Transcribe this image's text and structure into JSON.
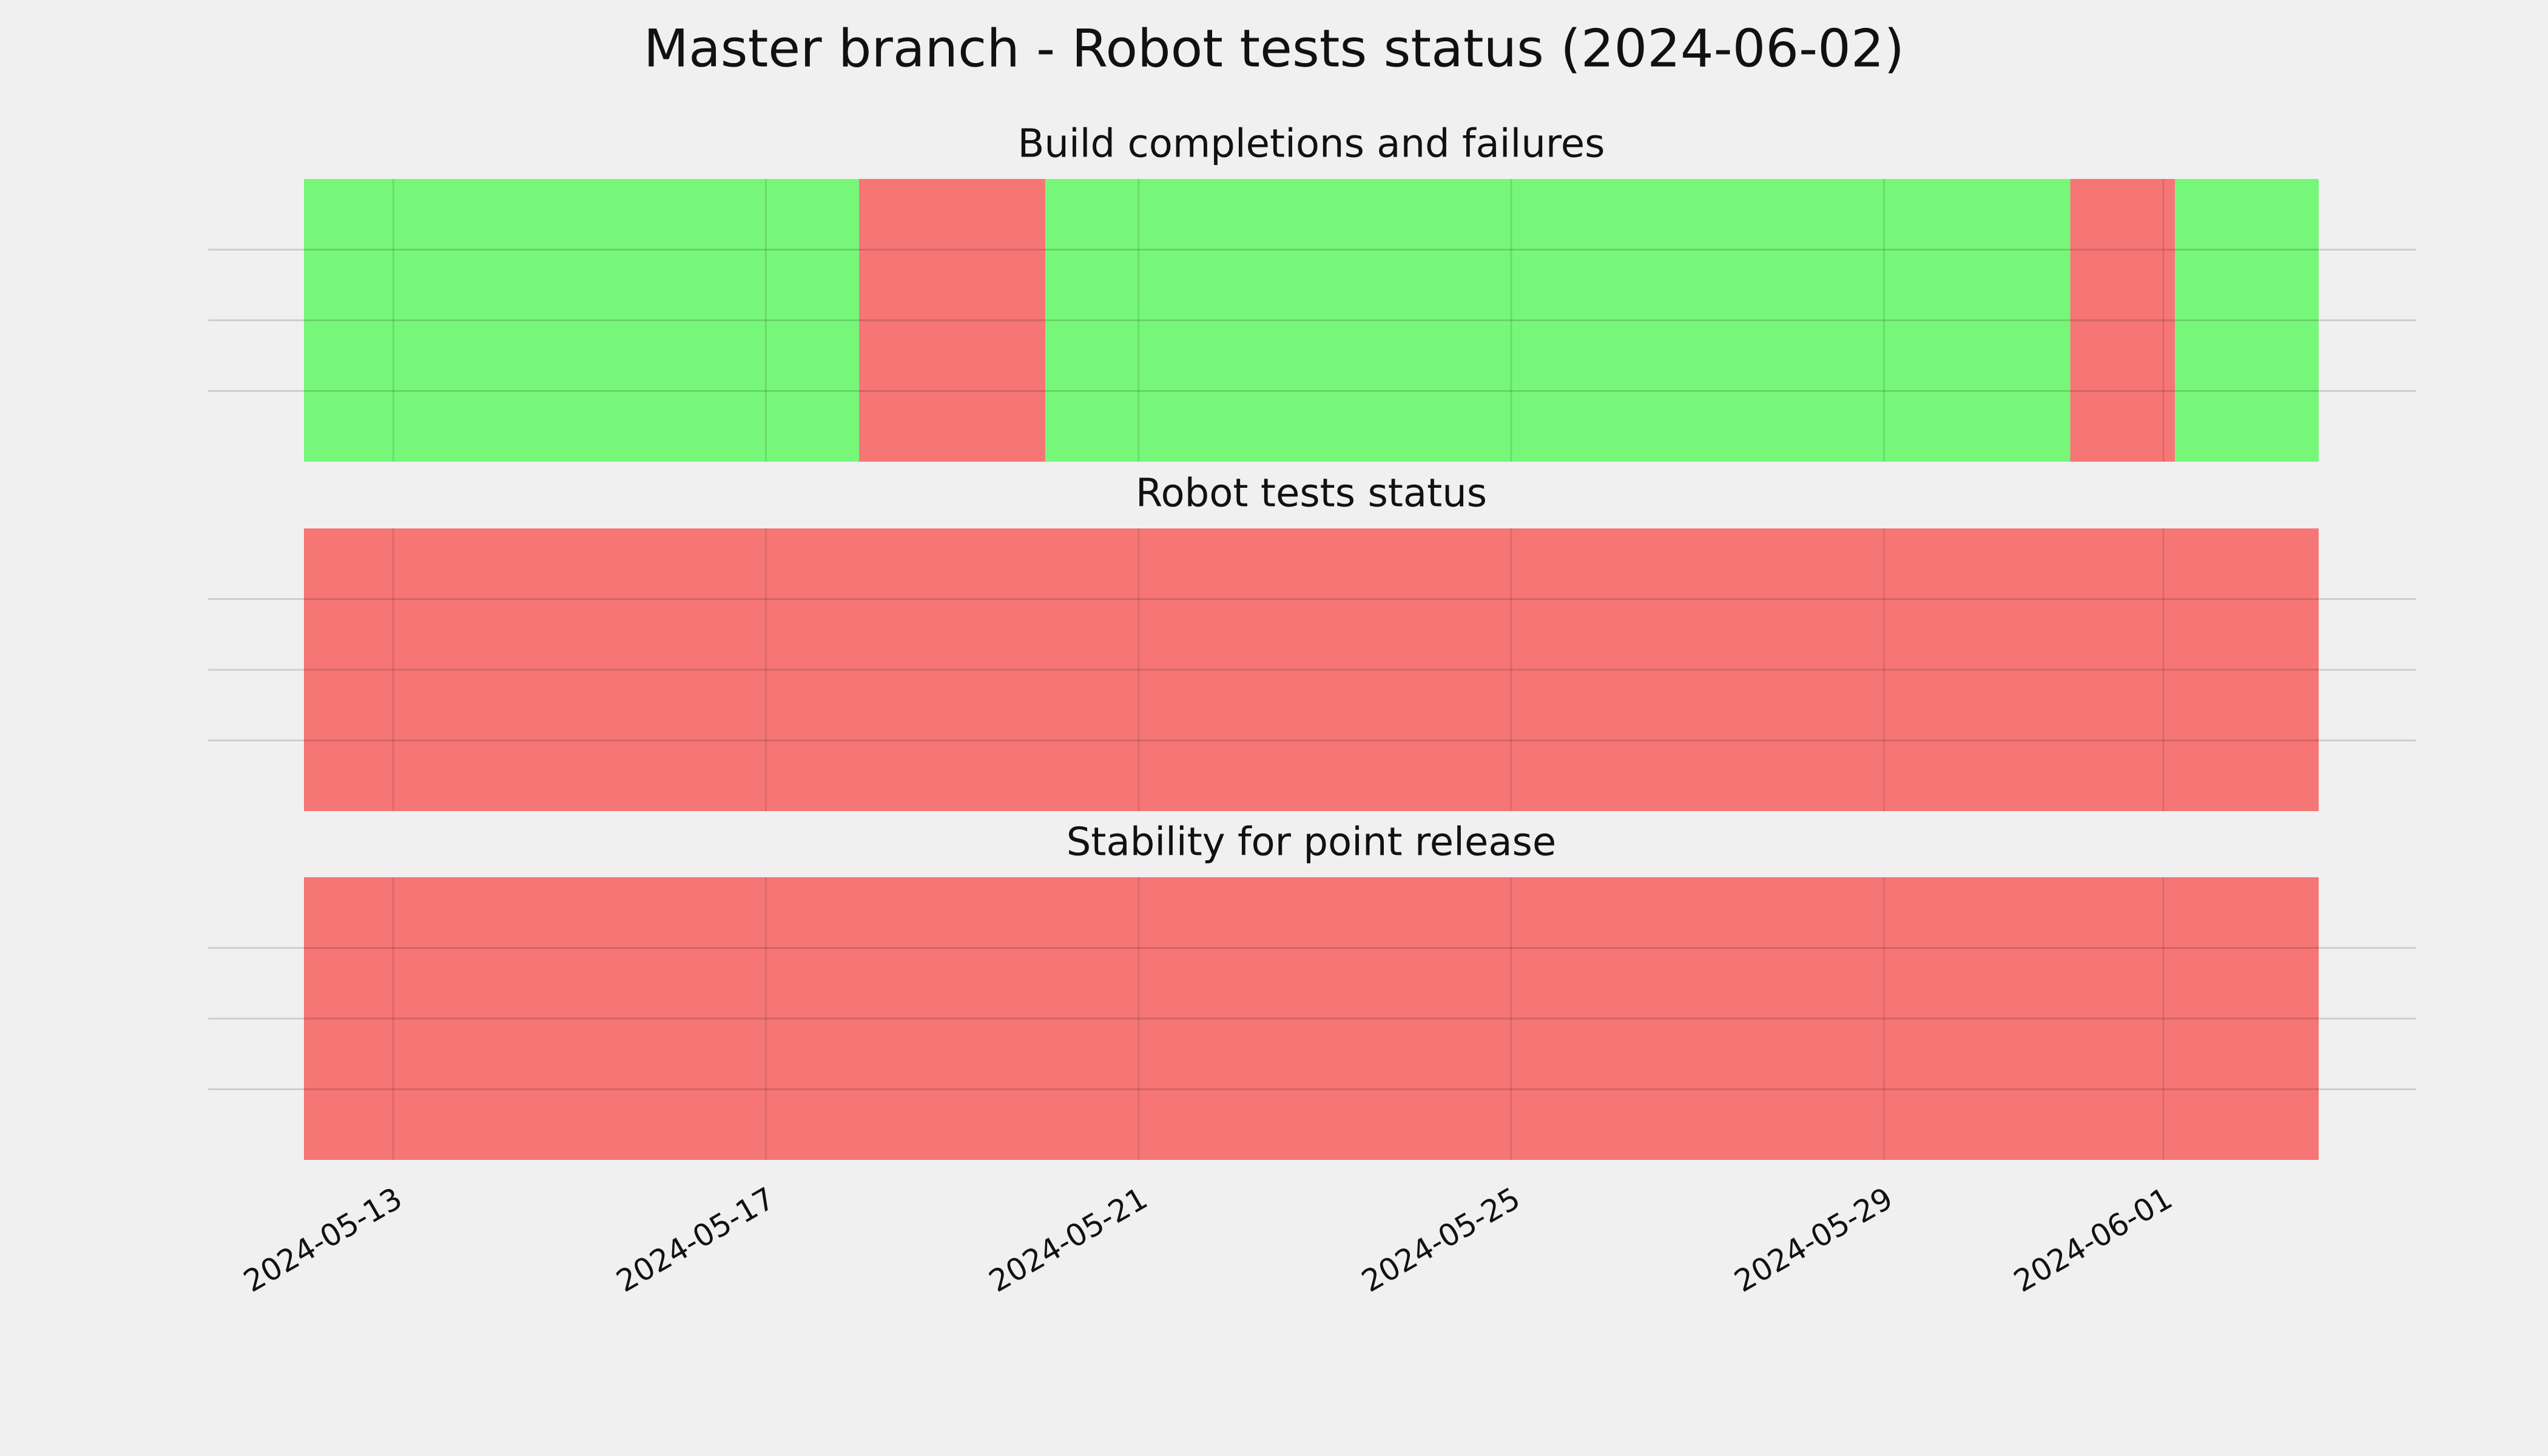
{
  "chart_data": {
    "type": "timeline",
    "title": "Master branch - Robot tests status (2024-06-02)",
    "xlim": [
      "2024-05-12T01:00",
      "2024-06-02T16:00"
    ],
    "xticks": [
      "2024-05-13",
      "2024-05-17",
      "2024-05-21",
      "2024-05-25",
      "2024-05-29",
      "2024-06-01"
    ],
    "ylim": [
      0,
      1
    ],
    "yticks": [
      0.25,
      0.5,
      0.75
    ],
    "grid": true,
    "panels": [
      {
        "title": "Build completions and failures",
        "spans": [
          {
            "start": "2024-05-12T01:00",
            "end": "2024-05-18",
            "color": "#77f77a"
          },
          {
            "start": "2024-05-18",
            "end": "2024-05-20",
            "color": "#f67676"
          },
          {
            "start": "2024-05-20",
            "end": "2024-05-31",
            "color": "#77f77a"
          },
          {
            "start": "2024-05-31",
            "end": "2024-06-01T03:00",
            "color": "#f67676"
          },
          {
            "start": "2024-06-01T03:00",
            "end": "2024-06-02T16:00",
            "color": "#77f77a"
          }
        ]
      },
      {
        "title": "Robot tests status",
        "spans": [
          {
            "start": "2024-05-12T01:00",
            "end": "2024-06-02T16:00",
            "color": "#f67676"
          }
        ]
      },
      {
        "title": "Stability for point release",
        "spans": [
          {
            "start": "2024-05-12T01:00",
            "end": "2024-06-02T16:00",
            "color": "#f67676"
          }
        ]
      }
    ]
  }
}
